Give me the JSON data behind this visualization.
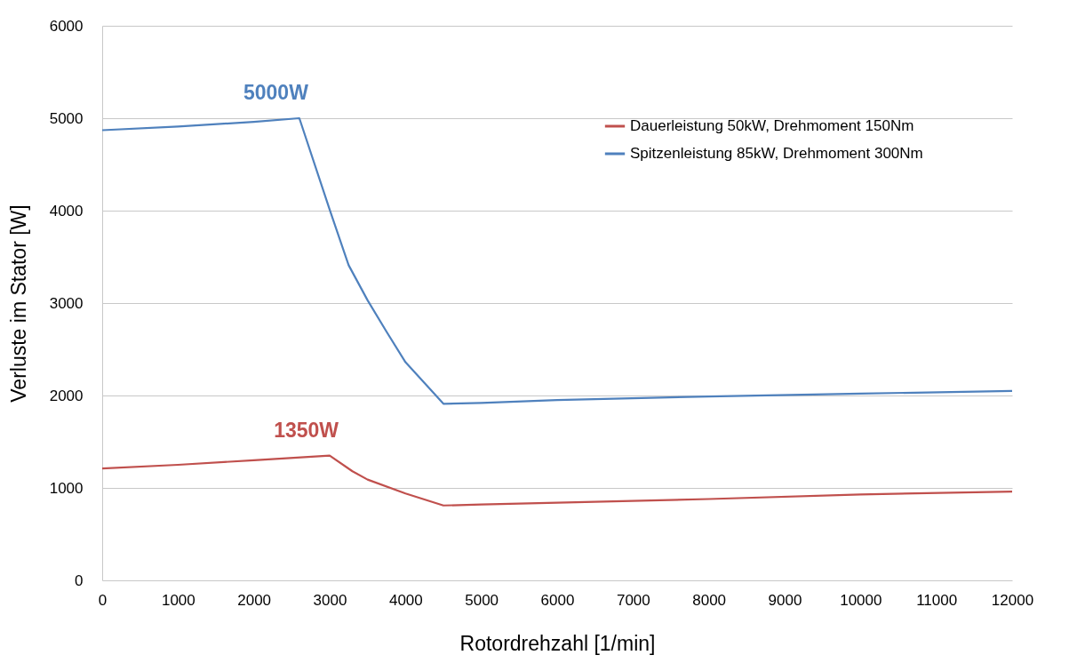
{
  "chart_data": {
    "type": "line",
    "xlabel": "Rotordrehzahl [1/min]",
    "ylabel": "Verluste im Stator [W]",
    "xlim": [
      0,
      12000
    ],
    "xticks": [
      0,
      1000,
      2000,
      3000,
      4000,
      5000,
      6000,
      7000,
      8000,
      9000,
      10000,
      11000,
      12000
    ],
    "ylim": [
      0,
      6000
    ],
    "yticks": [
      0,
      1000,
      2000,
      3000,
      4000,
      5000,
      6000
    ],
    "grid": "y",
    "legend": "top right",
    "marker": "none",
    "line_style": "solid",
    "series": [
      {
        "name": "Dauerleistung 50kW, Drehmoment 150Nm",
        "color": "#c0504d",
        "x": [
          0,
          1000,
          2000,
          3000,
          3300,
          3500,
          4000,
          4500,
          5000,
          6000,
          8000,
          10000,
          12000
        ],
        "values": [
          1210,
          1250,
          1300,
          1350,
          1180,
          1090,
          940,
          810,
          820,
          840,
          880,
          930,
          960
        ]
      },
      {
        "name": "Spitzenleistung 85kW, Drehmoment 300Nm",
        "color": "#4f81bd",
        "x": [
          0,
          1000,
          2000,
          2600,
          3000,
          3250,
          3500,
          3750,
          4000,
          4500,
          5000,
          6000,
          8000,
          10000,
          12000
        ],
        "values": [
          4870,
          4910,
          4960,
          5000,
          4010,
          3410,
          3030,
          2690,
          2360,
          1910,
          1920,
          1950,
          1990,
          2020,
          2050
        ]
      }
    ],
    "annotations": [
      {
        "text": "5000W",
        "x": 2600,
        "y": 5000
      },
      {
        "text": "1350W",
        "x": 3000,
        "y": 1350
      }
    ]
  }
}
